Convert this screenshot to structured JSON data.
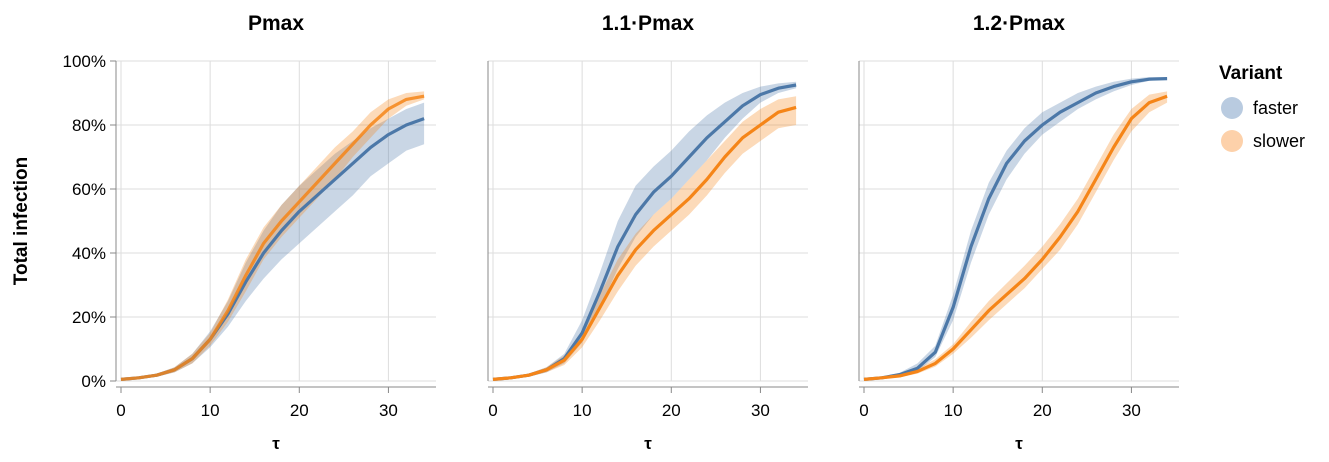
{
  "chart_data": {
    "type": "line",
    "ylabel": "Total infection",
    "xlabel": "τ",
    "x_ticks": [
      0,
      10,
      20,
      30
    ],
    "y_ticks": [
      0,
      20,
      40,
      60,
      80,
      100
    ],
    "y_tick_labels": [
      "0%",
      "20%",
      "40%",
      "60%",
      "80%",
      "100%"
    ],
    "xlim": [
      0,
      35
    ],
    "ylim": [
      0,
      100
    ],
    "grid": true,
    "legend": {
      "title": "Variant",
      "position": "right",
      "entries": [
        {
          "name": "faster",
          "color": "#4c78a8"
        },
        {
          "name": "slower",
          "color": "#f58518"
        }
      ]
    },
    "band_colors": {
      "faster": "#b9cbe0",
      "slower": "#fdd1aa"
    },
    "x": [
      0,
      2,
      4,
      6,
      8,
      10,
      12,
      14,
      16,
      18,
      20,
      22,
      24,
      26,
      28,
      30,
      32,
      34
    ],
    "panels": [
      {
        "title": "Pmax",
        "series": [
          {
            "name": "faster",
            "values": [
              0.5,
              1,
              1.8,
              3.5,
              7,
              13,
              21,
              31,
              40,
              47,
              53,
              58,
              63,
              68,
              73,
              77,
              80,
              82
            ],
            "lower": [
              0.3,
              0.7,
              1.3,
              2.7,
              5.5,
              10.5,
              17,
              25,
              32,
              38,
              43,
              48,
              53,
              58,
              64,
              68,
              72,
              74
            ],
            "upper": [
              0.8,
              1.3,
              2.3,
              4.3,
              8.5,
              15.5,
              25,
              37,
              47,
              55,
              61,
              66,
              71,
              75,
              79,
              82,
              85,
              87
            ]
          },
          {
            "name": "slower",
            "values": [
              0.5,
              1,
              1.8,
              3.5,
              7,
              13,
              22,
              33,
              43,
              50,
              56,
              62,
              68,
              74,
              80,
              85,
              88,
              89
            ],
            "lower": [
              0.3,
              0.7,
              1.3,
              2.7,
              5.5,
              11,
              18.5,
              28,
              38,
              45,
              51,
              57,
              63,
              70,
              76,
              82,
              86,
              88
            ],
            "upper": [
              0.8,
              1.3,
              2.3,
              4.3,
              8.5,
              15,
              25.5,
              38,
              48,
              55,
              61,
              67,
              73,
              78,
              84,
              88,
              90,
              90.5
            ]
          }
        ]
      },
      {
        "title": "1.1·Pmax",
        "series": [
          {
            "name": "faster",
            "values": [
              0.5,
              1,
              1.8,
              3.5,
              7,
              15,
              28,
              42,
              52,
              59,
              64,
              70,
              76,
              81,
              86,
              89.5,
              91.5,
              92.5
            ],
            "lower": [
              0.3,
              0.7,
              1.3,
              2.7,
              5.5,
              12,
              23,
              35,
              45,
              52,
              57,
              63,
              69,
              76,
              82,
              87,
              90,
              91.5
            ],
            "upper": [
              0.8,
              1.3,
              2.3,
              4.3,
              8.5,
              19,
              34,
              50,
              61,
              67,
              72,
              78,
              83,
              87,
              90,
              92,
              93,
              93.5
            ]
          },
          {
            "name": "slower",
            "values": [
              0.5,
              1,
              1.8,
              3.5,
              6.5,
              13,
              23,
              33,
              41,
              47,
              52,
              57,
              63,
              70,
              76,
              80,
              84,
              85.5
            ],
            "lower": [
              0.3,
              0.7,
              1.3,
              2.7,
              5,
              10.5,
              19,
              28,
              36,
              42,
              47,
              52,
              58,
              65,
              71,
              75,
              79,
              80
            ],
            "upper": [
              0.8,
              1.3,
              2.3,
              4.3,
              8,
              15.5,
              27,
              38,
              46,
              52,
              57,
              63,
              69,
              75,
              81,
              85,
              88,
              89
            ]
          }
        ]
      },
      {
        "title": "1.2·Pmax",
        "series": [
          {
            "name": "faster",
            "values": [
              0.5,
              1,
              2,
              4,
              9,
              23,
              42,
              57,
              68,
              75,
              80,
              84,
              87,
              90,
              92,
              93.5,
              94.3,
              94.5
            ],
            "lower": [
              0.3,
              0.7,
              1.5,
              3,
              7.5,
              19,
              37,
              52,
              63,
              71,
              77,
              81,
              85,
              88,
              90.5,
              92.5,
              93.8,
              94.3
            ],
            "upper": [
              0.8,
              1.3,
              2.6,
              5.5,
              11,
              27,
              47,
              62,
              72,
              79,
              84,
              87,
              90,
              92,
              93.5,
              94.5,
              95,
              95
            ]
          },
          {
            "name": "slower",
            "values": [
              0.5,
              1,
              1.6,
              3,
              5.5,
              10,
              16,
              22,
              27,
              32,
              38,
              45,
              53,
              63,
              73,
              82,
              87,
              89
            ],
            "lower": [
              0.3,
              0.7,
              1.2,
              2.3,
              4.5,
              8.5,
              13.5,
              19,
              24,
              29,
              35,
              41,
              49,
              59,
              69,
              78,
              84,
              87
            ],
            "upper": [
              0.8,
              1.3,
              2.1,
              3.8,
              6.8,
              11.5,
              18.5,
              25,
              30.5,
              36,
              42,
              49,
              57,
              67,
              77,
              85,
              89.5,
              90.5
            ]
          }
        ]
      }
    ]
  }
}
